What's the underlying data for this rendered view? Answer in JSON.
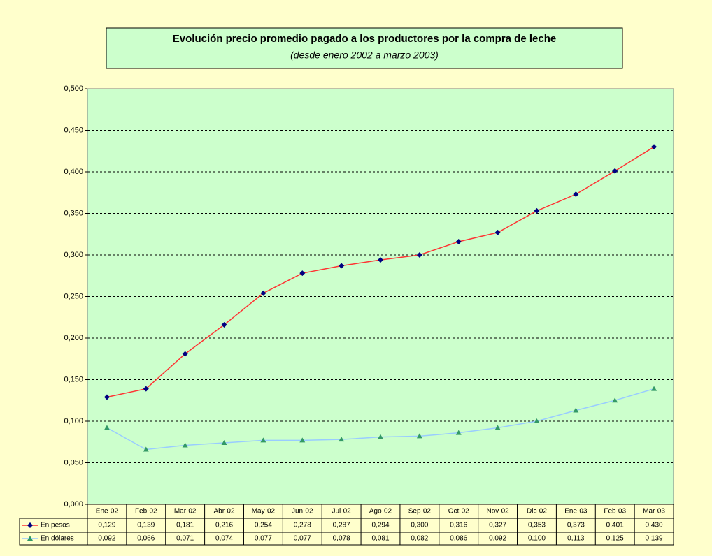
{
  "chart_data": {
    "type": "line",
    "title": "Evolución precio promedio pagado a los productores por la compra de leche",
    "subtitle": "(desde enero 2002 a marzo 2003)",
    "categories": [
      "Ene-02",
      "Feb-02",
      "Mar-02",
      "Abr-02",
      "May-02",
      "Jun-02",
      "Jul-02",
      "Ago-02",
      "Sep-02",
      "Oct-02",
      "Nov-02",
      "Dic-02",
      "Ene-03",
      "Feb-03",
      "Mar-03"
    ],
    "series": [
      {
        "name": "En pesos",
        "color": "#ff3333",
        "marker_color": "#000080",
        "marker": "diamond",
        "values": [
          0.129,
          0.139,
          0.181,
          0.216,
          0.254,
          0.278,
          0.287,
          0.294,
          0.3,
          0.316,
          0.327,
          0.353,
          0.373,
          0.401,
          0.43
        ],
        "value_labels": [
          "0,129",
          "0,139",
          "0,181",
          "0,216",
          "0,254",
          "0,278",
          "0,287",
          "0,294",
          "0,300",
          "0,316",
          "0,327",
          "0,353",
          "0,373",
          "0,401",
          "0,430"
        ]
      },
      {
        "name": "En dólares",
        "color": "#99ccff",
        "marker_color": "#339966",
        "marker": "triangle",
        "values": [
          0.092,
          0.066,
          0.071,
          0.074,
          0.077,
          0.077,
          0.078,
          0.081,
          0.082,
          0.086,
          0.092,
          0.1,
          0.113,
          0.125,
          0.139
        ],
        "value_labels": [
          "0,092",
          "0,066",
          "0,071",
          "0,074",
          "0,077",
          "0,077",
          "0,078",
          "0,081",
          "0,082",
          "0,086",
          "0,092",
          "0,100",
          "0,113",
          "0,125",
          "0,139"
        ]
      }
    ],
    "ylim": [
      0,
      0.5
    ],
    "yticks": [
      {
        "value": 0,
        "label": "0,000"
      },
      {
        "value": 0.05,
        "label": "0,050"
      },
      {
        "value": 0.1,
        "label": "0,100"
      },
      {
        "value": 0.15,
        "label": "0,150"
      },
      {
        "value": 0.2,
        "label": "0,200"
      },
      {
        "value": 0.25,
        "label": "0,250"
      },
      {
        "value": 0.3,
        "label": "0,300"
      },
      {
        "value": 0.35,
        "label": "0,350"
      },
      {
        "value": 0.4,
        "label": "0,400"
      },
      {
        "value": 0.45,
        "label": "0,450"
      },
      {
        "value": 0.5,
        "label": "0,500"
      }
    ],
    "grid": true
  }
}
